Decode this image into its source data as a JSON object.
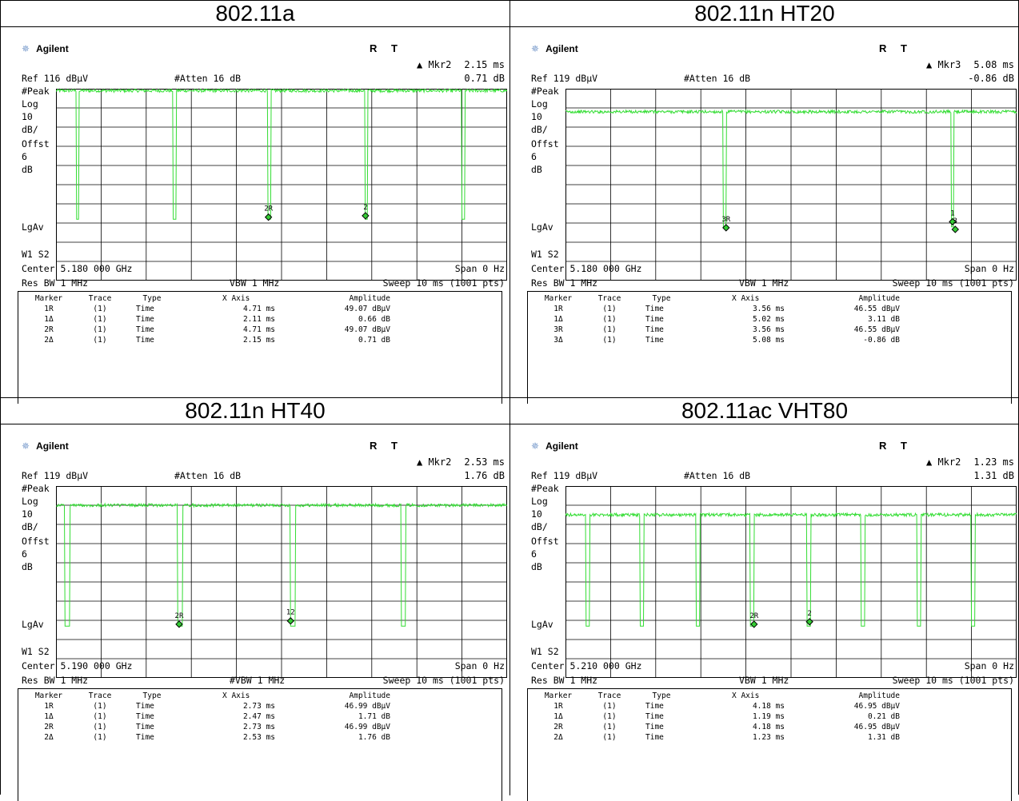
{
  "panels": [
    {
      "title": "802.11a",
      "brand": "Agilent",
      "rt": "R T",
      "marker_readout": {
        "label": "▲ Mkr2",
        "time": "2.15 ms",
        "value": "0.71 dB"
      },
      "ref": "Ref 116 dBμV",
      "atten": "#Atten 16 dB",
      "left_labels": {
        "peak": "#Peak",
        "log": "Log",
        "ten": "10",
        "dbdiv": "dB/",
        "offst": "Offst",
        "six": "6",
        "db": "dB",
        "lgav": "LgAv",
        "w1s2": "W1 S2"
      },
      "center": "Center 5.180 000 GHz",
      "span": "Span 0 Hz",
      "resbw": "Res BW 1 MHz",
      "vbw": "VBW 1 MHz",
      "sweep": "Sweep 10 ms (1001 pts)",
      "table_headers": [
        "Marker",
        "Trace",
        "Type",
        "X Axis",
        "Amplitude"
      ],
      "table_rows": [
        [
          "1R",
          "(1)",
          "Time",
          "4.71 ms",
          "49.07 dBμV"
        ],
        [
          "1Δ",
          "(1)",
          "Time",
          "2.11 ms",
          "0.66 dB"
        ],
        [
          "2R",
          "(1)",
          "Time",
          "4.71 ms",
          "49.07 dBμV"
        ],
        [
          "2Δ",
          "(1)",
          "Time",
          "2.15 ms",
          "0.71 dB"
        ]
      ]
    },
    {
      "title": "802.11n HT20",
      "brand": "Agilent",
      "rt": "R T",
      "marker_readout": {
        "label": "▲ Mkr3",
        "time": "5.08 ms",
        "value": "-0.86 dB"
      },
      "ref": "Ref 119 dBμV",
      "atten": "#Atten 16 dB",
      "left_labels": {
        "peak": "#Peak",
        "log": "Log",
        "ten": "10",
        "dbdiv": "dB/",
        "offst": "Offst",
        "six": "6",
        "db": "dB",
        "lgav": "LgAv",
        "w1s2": "W1 S2"
      },
      "center": "Center 5.180 000 GHz",
      "span": "Span 0 Hz",
      "resbw": "Res BW 1 MHz",
      "vbw": "VBW 1 MHz",
      "sweep": "Sweep 10 ms (1001 pts)",
      "table_headers": [
        "Marker",
        "Trace",
        "Type",
        "X Axis",
        "Amplitude"
      ],
      "table_rows": [
        [
          "1R",
          "(1)",
          "Time",
          "3.56 ms",
          "46.55 dBμV"
        ],
        [
          "1Δ",
          "(1)",
          "Time",
          "5.02 ms",
          "3.11 dB"
        ],
        [
          "3R",
          "(1)",
          "Time",
          "3.56 ms",
          "46.55 dBμV"
        ],
        [
          "3Δ",
          "(1)",
          "Time",
          "5.08 ms",
          "-0.86 dB"
        ]
      ]
    },
    {
      "title": "802.11n HT40",
      "brand": "Agilent",
      "rt": "R T",
      "marker_readout": {
        "label": "▲ Mkr2",
        "time": "2.53 ms",
        "value": "1.76 dB"
      },
      "ref": "Ref 119 dBμV",
      "atten": "#Atten 16 dB",
      "left_labels": {
        "peak": "#Peak",
        "log": "Log",
        "ten": "10",
        "dbdiv": "dB/",
        "offst": "Offst",
        "six": "6",
        "db": "dB",
        "lgav": "LgAv",
        "w1s2": "W1 S2"
      },
      "center": "Center 5.190 000 GHz",
      "span": "Span 0 Hz",
      "resbw": "Res BW 1 MHz",
      "vbw": "#VBW 1 MHz",
      "sweep": "Sweep 10 ms (1001 pts)",
      "table_headers": [
        "Marker",
        "Trace",
        "Type",
        "X Axis",
        "Amplitude"
      ],
      "table_rows": [
        [
          "1R",
          "(1)",
          "Time",
          "2.73 ms",
          "46.99 dBμV"
        ],
        [
          "1Δ",
          "(1)",
          "Time",
          "2.47 ms",
          "1.71 dB"
        ],
        [
          "2R",
          "(1)",
          "Time",
          "2.73 ms",
          "46.99 dBμV"
        ],
        [
          "2Δ",
          "(1)",
          "Time",
          "2.53 ms",
          "1.76 dB"
        ]
      ]
    },
    {
      "title": "802.11ac VHT80",
      "brand": "Agilent",
      "rt": "R T",
      "marker_readout": {
        "label": "▲ Mkr2",
        "time": "1.23 ms",
        "value": "1.31 dB"
      },
      "ref": "Ref 119 dBμV",
      "atten": "#Atten 16 dB",
      "left_labels": {
        "peak": "#Peak",
        "log": "Log",
        "ten": "10",
        "dbdiv": "dB/",
        "offst": "Offst",
        "six": "6",
        "db": "dB",
        "lgav": "LgAv",
        "w1s2": "W1 S2"
      },
      "center": "Center 5.210 000 GHz",
      "span": "Span 0 Hz",
      "resbw": "Res BW 1 MHz",
      "vbw": "VBW 1 MHz",
      "sweep": "Sweep 10 ms (1001 pts)",
      "table_headers": [
        "Marker",
        "Trace",
        "Type",
        "X Axis",
        "Amplitude"
      ],
      "table_rows": [
        [
          "1R",
          "(1)",
          "Time",
          "4.18 ms",
          "46.95 dBμV"
        ],
        [
          "1Δ",
          "(1)",
          "Time",
          "1.19 ms",
          "0.21 dB"
        ],
        [
          "2R",
          "(1)",
          "Time",
          "4.18 ms",
          "46.95 dBμV"
        ],
        [
          "2Δ",
          "(1)",
          "Time",
          "1.23 ms",
          "1.31 dB"
        ]
      ]
    }
  ],
  "chart_data": [
    {
      "type": "line",
      "title": "802.11a",
      "trace_color": "#33dd33",
      "grid": true,
      "x_range_ms": [
        0,
        10
      ],
      "y_range_dbuv": [
        16,
        116
      ],
      "y_div_db": 10,
      "baseline_dbuv": 115,
      "gap_floor_dbuv": 48,
      "gap_starts_ms": [
        0.45,
        2.6,
        4.7,
        6.85,
        9.0
      ],
      "gap_width_ms": 0.06,
      "markers": [
        {
          "label": "2R",
          "x_ms": 4.71,
          "y_dbuv": 49.07
        },
        {
          "label": "2",
          "x_ms": 6.86,
          "y_dbuv": 49.78
        }
      ]
    },
    {
      "type": "line",
      "title": "802.11n HT20",
      "trace_color": "#33dd33",
      "grid": true,
      "x_range_ms": [
        0,
        10
      ],
      "y_range_dbuv": [
        19,
        119
      ],
      "y_div_db": 10,
      "baseline_dbuv": 107,
      "gap_floor_dbuv": 47,
      "gap_starts_ms": [
        3.5,
        8.55
      ],
      "gap_width_ms": 0.06,
      "markers": [
        {
          "label": "3R",
          "x_ms": 3.56,
          "y_dbuv": 46.55
        },
        {
          "label": "1",
          "x_ms": 8.58,
          "y_dbuv": 49.66
        },
        {
          "label": "3",
          "x_ms": 8.64,
          "y_dbuv": 45.69
        }
      ]
    },
    {
      "type": "line",
      "title": "802.11n HT40",
      "trace_color": "#33dd33",
      "grid": true,
      "x_range_ms": [
        0,
        10
      ],
      "y_range_dbuv": [
        19,
        119
      ],
      "y_div_db": 10,
      "baseline_dbuv": 109,
      "gap_floor_dbuv": 46,
      "gap_starts_ms": [
        0.2,
        2.7,
        5.2,
        7.65
      ],
      "gap_width_ms": 0.1,
      "markers": [
        {
          "label": "2R",
          "x_ms": 2.73,
          "y_dbuv": 46.99
        },
        {
          "label": "12",
          "x_ms": 5.2,
          "y_dbuv": 48.7
        }
      ]
    },
    {
      "type": "line",
      "title": "802.11ac VHT80",
      "trace_color": "#33dd33",
      "grid": true,
      "x_range_ms": [
        0,
        10
      ],
      "y_range_dbuv": [
        19,
        119
      ],
      "y_div_db": 10,
      "baseline_dbuv": 104,
      "gap_floor_dbuv": 46,
      "gap_starts_ms": [
        0.45,
        1.65,
        2.9,
        4.1,
        5.35,
        6.55,
        7.8,
        9.0
      ],
      "gap_width_ms": 0.08,
      "markers": [
        {
          "label": "2R",
          "x_ms": 4.18,
          "y_dbuv": 46.95
        },
        {
          "label": "2",
          "x_ms": 5.41,
          "y_dbuv": 48.26
        }
      ]
    }
  ]
}
